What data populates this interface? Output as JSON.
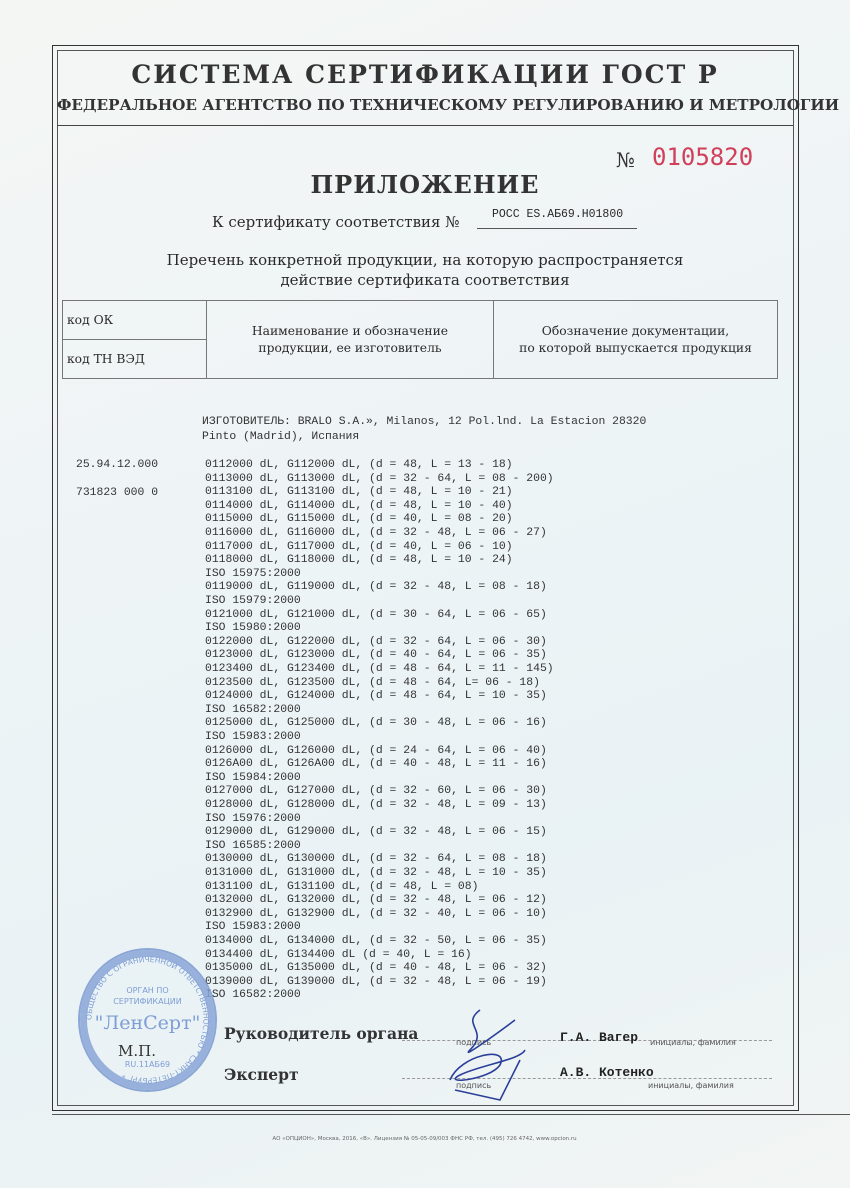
{
  "header": {
    "system": "СИСТЕМА СЕРТИФИКАЦИИ ГОСТ Р",
    "agency": "ФЕДЕРАЛЬНОЕ АГЕНТСТВО ПО ТЕХНИЧЕСКОМУ РЕГУЛИРОВАНИЮ И МЕТРОЛОГИИ",
    "number_label": "№",
    "number": "0105820",
    "number_color": "#d0405a",
    "annex_title": "ПРИЛОЖЕНИЕ",
    "cert_label": "К сертификату соответствия №",
    "cert_number": "РОСС ES.АБ69.Н01800",
    "subtitle_1": "Перечень конкретной продукции,  на которую распространяется",
    "subtitle_2": "действие сертификата соответствия"
  },
  "table_header": {
    "code_ok": "код ОК",
    "code_tn": "код ТН ВЭД",
    "col2_1": "Наименование и обозначение",
    "col2_2": "продукции, ее изготовитель",
    "col3_1": "Обозначение документации,",
    "col3_2": "по которой выпускается продукция"
  },
  "body": {
    "manufacturer_1": "ИЗГОТОВИТЕЛЬ: BRALO S.A.», Milanos, 12 Pol.lnd. La Estacion 28320",
    "manufacturer_2": "Pinto (Madrid), Испания",
    "code_ok": "25.94.12.000",
    "code_tn": "731823 000 0",
    "lines": [
      "0112000 dL, G112000 dL, (d = 48, L = 13 - 18)",
      "0113000 dL, G113000 dL, (d = 32 - 64, L = 08 - 200)",
      "0113100 dL, G113100 dL, (d = 48, L = 10 - 21)",
      "0114000 dL, G114000 dL, (d = 48, L = 10 - 40)",
      "0115000 dL, G115000 dL, (d = 40, L = 08 - 20)",
      "0116000 dL, G116000 dL, (d = 32 - 48, L = 06 - 27)",
      "0117000 dL, G117000 dL, (d = 40, L = 06 - 10)",
      "0118000 dL, G118000 dL, (d = 48, L = 10 - 24)",
      "ISO 15975:2000",
      "0119000 dL, G119000 dL, (d = 32 - 48, L = 08 - 18)",
      "ISO 15979:2000",
      "0121000 dL, G121000 dL, (d = 30 - 64, L = 06 - 65)",
      "ISO 15980:2000",
      "0122000 dL, G122000 dL, (d = 32 - 64, L = 06 - 30)",
      "0123000 dL, G123000 dL, (d = 40 - 64, L = 06 - 35)",
      "0123400 dL, G123400 dL, (d = 48 - 64, L = 11 - 145)",
      "0123500 dL, G123500 dL, (d = 48 - 64, L= 06 - 18)",
      "0124000 dL, G124000 dL, (d = 48 - 64, L = 10 - 35)",
      "ISO 16582:2000",
      "0125000 dL, G125000 dL, (d = 30 - 48, L = 06 - 16)",
      "ISO 15983:2000",
      "0126000 dL, G126000 dL, (d = 24 - 64, L = 06 - 40)",
      "0126A00 dL, G126A00 dL, (d = 40 - 48, L = 11 - 16)",
      "ISO 15984:2000",
      "0127000 dL, G127000 dL, (d = 32 - 60, L = 06 - 30)",
      "0128000 dL, G128000 dL, (d = 32 - 48, L = 09 - 13)",
      "ISO 15976:2000",
      "0129000 dL, G129000 dL, (d = 32 - 48, L = 06 - 15)",
      "ISO 16585:2000",
      "0130000 dL, G130000 dL, (d = 32 - 64, L = 08 - 18)",
      "0131000 dL, G131000 dL, (d = 32 - 48, L = 10 - 35)",
      "0131100 dL, G131100 dL, (d = 48, L = 08)",
      "0132000 dL, G132000 dL, (d = 32 - 48, L = 06 - 12)",
      "0132900 dL, G132900 dL, (d = 32 - 40, L = 06 - 10)",
      "ISO 15983:2000",
      "0134000 dL, G134000 dL, (d = 32 - 50, L = 06 - 35)",
      "0134400 dL, G134400 dL (d = 40, L = 16)",
      "0135000 dL, G135000 dL, (d = 40 - 48, L = 06 - 32)",
      "0139000 dL, G139000 dL, (d = 32 - 48, L = 06 - 19)",
      "ISO 16582:2000"
    ]
  },
  "stamp": {
    "ring_text": "ОБЩЕСТВО С ОГРАНИЧЕННОЙ ОТВЕТСТВЕННОСТЬЮ * САНКТ-ПЕТЕРБУРГ *",
    "line1": "ОРГАН ПО",
    "line2": "СЕРТИФИКАЦИИ",
    "name": "\"ЛенСерт\"",
    "reg": "RU.11АБ69",
    "color": "#6c8fcf"
  },
  "signatures": {
    "mp": "М.П.",
    "head_label": "Руководитель органа",
    "head_name": "Г.А. Вагер",
    "expert_label": "Эксперт",
    "expert_name": "А.В. Котенко",
    "signature_caption": "подпись",
    "name_caption": "инициалы, фамилия"
  },
  "footer": "АО «ОПЦИОН», Москва, 2016, «В».  Лицензия № 05-05-09/003 ФНС РФ, тел. (495) 726 4742, www.opcion.ru"
}
